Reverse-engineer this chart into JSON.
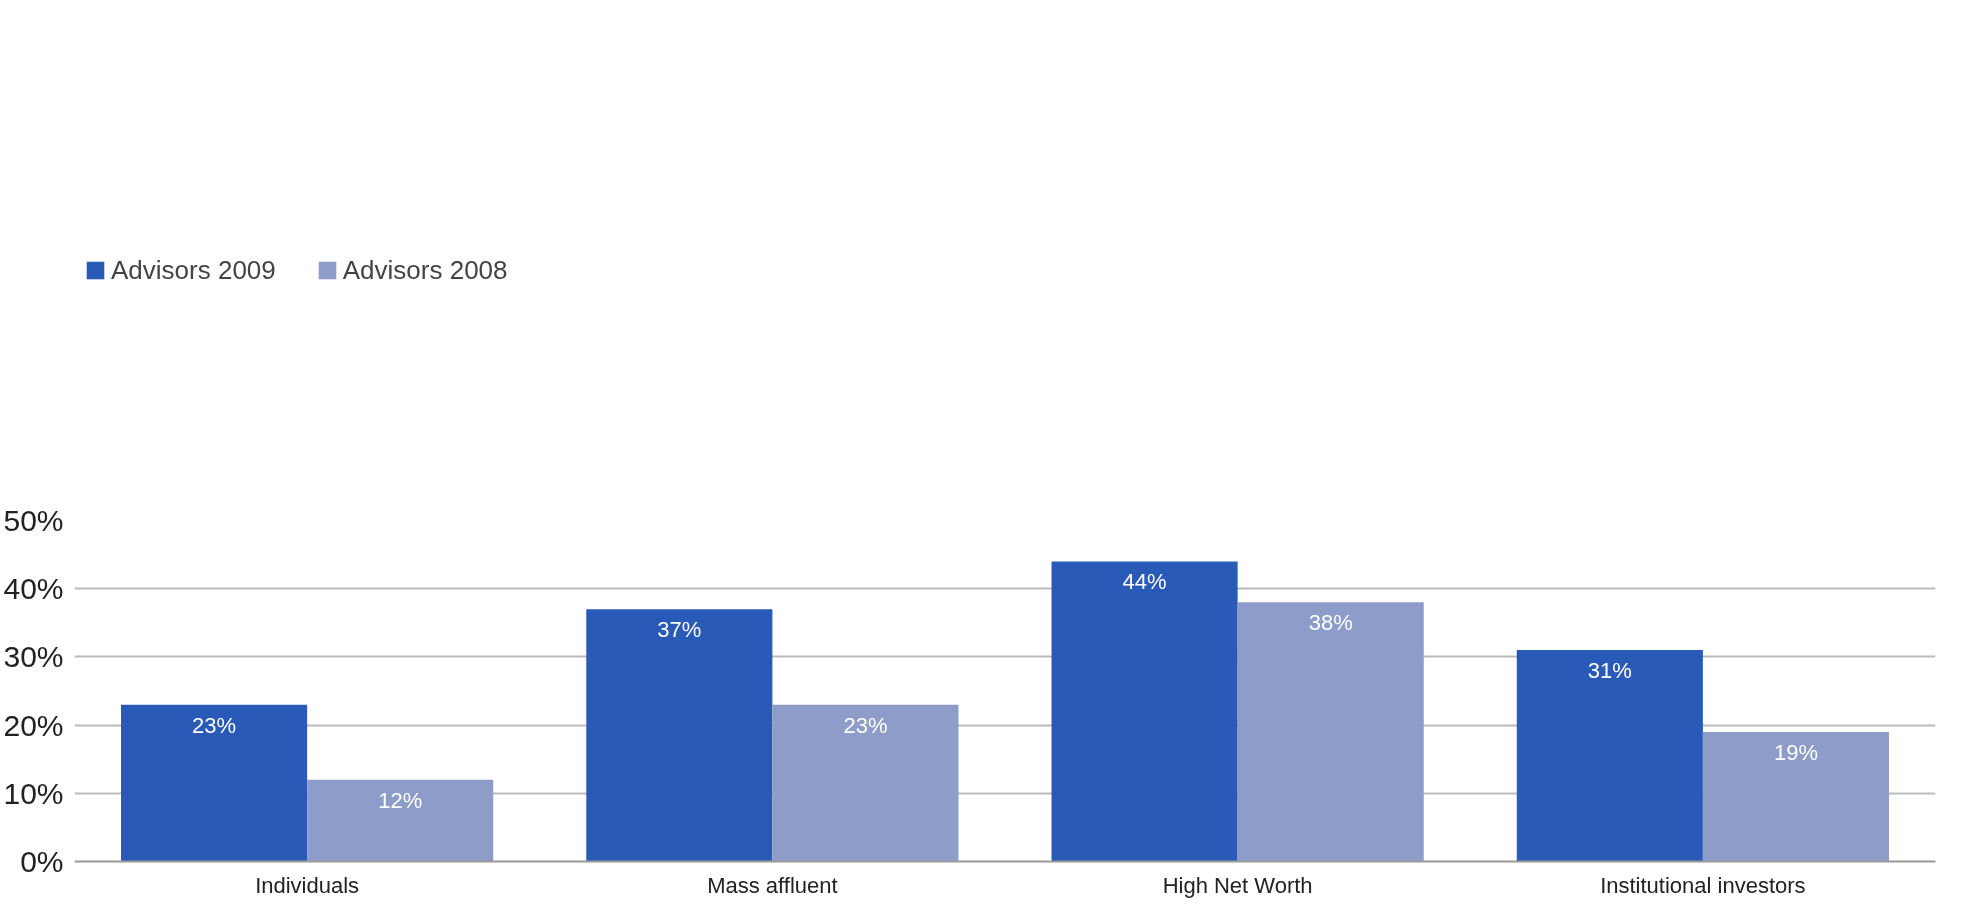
{
  "chart_data": {
    "type": "bar",
    "categories": [
      "Individuals",
      "Mass affluent",
      "High Net Worth",
      "Institutional investors"
    ],
    "series": [
      {
        "name": "Advisors 2009",
        "color": "#2a5ab8",
        "values": [
          23,
          37,
          44,
          31
        ]
      },
      {
        "name": "Advisors 2008",
        "color": "#8d9cc8",
        "values": [
          12,
          23,
          38,
          19
        ]
      }
    ],
    "ylim": [
      0,
      50
    ],
    "yticks": [
      {
        "value": 0,
        "label": "0%"
      },
      {
        "value": 10,
        "label": "10%"
      },
      {
        "value": 20,
        "label": "20%"
      },
      {
        "value": 30,
        "label": "30%"
      },
      {
        "value": 40,
        "label": "40%"
      },
      {
        "value": 50,
        "label": "50%"
      }
    ],
    "value_labels": [
      [
        "23%",
        "37%",
        "44%",
        "31%"
      ],
      [
        "12%",
        "23%",
        "38%",
        "19%"
      ]
    ],
    "grid": "y",
    "legend": "top left"
  }
}
